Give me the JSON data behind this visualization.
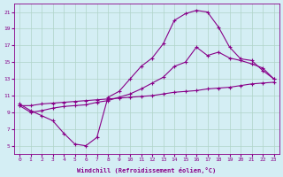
{
  "xlabel": "Windchill (Refroidissement éolien,°C)",
  "bg_color": "#d4eef4",
  "grid_color": "#b0d4c8",
  "line_color": "#880088",
  "xlim": [
    -0.5,
    23.5
  ],
  "ylim": [
    4,
    22
  ],
  "xticks": [
    0,
    1,
    2,
    3,
    4,
    5,
    6,
    7,
    8,
    9,
    10,
    11,
    12,
    13,
    14,
    15,
    16,
    17,
    18,
    19,
    20,
    21,
    22,
    23
  ],
  "yticks": [
    5,
    7,
    9,
    11,
    13,
    15,
    17,
    19,
    21
  ],
  "curve1_x": [
    0,
    1,
    2,
    3,
    4,
    5,
    6,
    7,
    8,
    9,
    10,
    11,
    12,
    13,
    14,
    15,
    16,
    17,
    18,
    19,
    20,
    21,
    22,
    23
  ],
  "curve1_y": [
    10.0,
    9.2,
    8.6,
    8.0,
    6.5,
    5.2,
    5.0,
    6.0,
    10.8,
    11.5,
    13.0,
    14.5,
    15.5,
    17.2,
    20.0,
    20.8,
    21.2,
    21.0,
    19.2,
    16.8,
    15.4,
    15.2,
    14.0,
    13.0
  ],
  "curve2_x": [
    0,
    1,
    2,
    3,
    4,
    5,
    6,
    7,
    8,
    9,
    10,
    11,
    12,
    13,
    14,
    15,
    16,
    17,
    18,
    19,
    20,
    21,
    22,
    23
  ],
  "curve2_y": [
    9.8,
    9.8,
    10.0,
    10.1,
    10.2,
    10.3,
    10.4,
    10.5,
    10.6,
    10.7,
    10.8,
    10.9,
    11.0,
    11.2,
    11.4,
    11.5,
    11.6,
    11.8,
    11.9,
    12.0,
    12.2,
    12.4,
    12.5,
    12.6
  ],
  "curve3_x": [
    0,
    1,
    2,
    3,
    4,
    5,
    6,
    7,
    8,
    9,
    10,
    11,
    12,
    13,
    14,
    15,
    16,
    17,
    18,
    19,
    20,
    21,
    22,
    23
  ],
  "curve3_y": [
    9.8,
    9.0,
    9.2,
    9.5,
    9.7,
    9.8,
    9.9,
    10.2,
    10.4,
    10.8,
    11.2,
    11.8,
    12.5,
    13.2,
    14.5,
    15.0,
    16.8,
    15.8,
    16.2,
    15.5,
    15.2,
    14.8,
    14.3,
    13.0
  ]
}
